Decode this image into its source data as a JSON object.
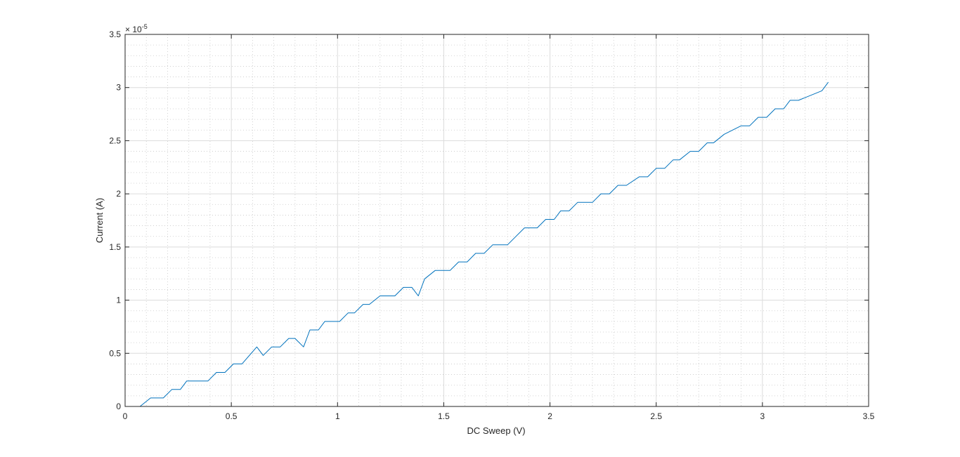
{
  "chart_data": {
    "type": "line",
    "title": "",
    "xlabel": "DC Sweep (V)",
    "ylabel": "Current (A)",
    "y_exponent_label": "× 10",
    "y_exponent_power": "-5",
    "xlim": [
      0,
      3.5
    ],
    "ylim": [
      0,
      3.5
    ],
    "x_ticks": [
      "0",
      "0.5",
      "1",
      "1.5",
      "2",
      "2.5",
      "3",
      "3.5"
    ],
    "y_ticks": [
      "0",
      "0.5",
      "1",
      "1.5",
      "2",
      "2.5",
      "3",
      "3.5"
    ],
    "grid": true,
    "minor_grid": true,
    "series": [
      {
        "color": "#0072bd",
        "x": [
          0,
          0.07,
          0.12,
          0.18,
          0.22,
          0.26,
          0.29,
          0.39,
          0.43,
          0.47,
          0.51,
          0.55,
          0.62,
          0.65,
          0.69,
          0.73,
          0.77,
          0.8,
          0.84,
          0.87,
          0.91,
          0.94,
          0.98,
          1.01,
          1.05,
          1.08,
          1.12,
          1.15,
          1.2,
          1.27,
          1.31,
          1.35,
          1.38,
          1.41,
          1.46,
          1.53,
          1.57,
          1.61,
          1.65,
          1.69,
          1.73,
          1.8,
          1.84,
          1.88,
          1.94,
          1.98,
          2.02,
          2.05,
          2.09,
          2.13,
          2.17,
          2.2,
          2.24,
          2.28,
          2.32,
          2.36,
          2.42,
          2.46,
          2.5,
          2.54,
          2.58,
          2.61,
          2.66,
          2.7,
          2.74,
          2.77,
          2.82,
          2.9,
          2.94,
          2.98,
          3.02,
          3.06,
          3.1,
          3.13,
          3.17,
          3.28,
          3.31
        ],
        "y": [
          0,
          0,
          0.08,
          0.08,
          0.16,
          0.16,
          0.24,
          0.24,
          0.32,
          0.32,
          0.4,
          0.4,
          0.56,
          0.48,
          0.56,
          0.56,
          0.64,
          0.64,
          0.56,
          0.72,
          0.72,
          0.8,
          0.8,
          0.8,
          0.88,
          0.88,
          0.96,
          0.96,
          1.04,
          1.04,
          1.12,
          1.12,
          1.04,
          1.2,
          1.28,
          1.28,
          1.36,
          1.36,
          1.44,
          1.44,
          1.52,
          1.52,
          1.6,
          1.68,
          1.68,
          1.76,
          1.76,
          1.84,
          1.84,
          1.92,
          1.92,
          1.92,
          2.0,
          2.0,
          2.08,
          2.08,
          2.16,
          2.16,
          2.24,
          2.24,
          2.32,
          2.32,
          2.4,
          2.4,
          2.48,
          2.48,
          2.56,
          2.64,
          2.64,
          2.72,
          2.72,
          2.8,
          2.8,
          2.88,
          2.88,
          2.97,
          3.05
        ]
      }
    ]
  }
}
